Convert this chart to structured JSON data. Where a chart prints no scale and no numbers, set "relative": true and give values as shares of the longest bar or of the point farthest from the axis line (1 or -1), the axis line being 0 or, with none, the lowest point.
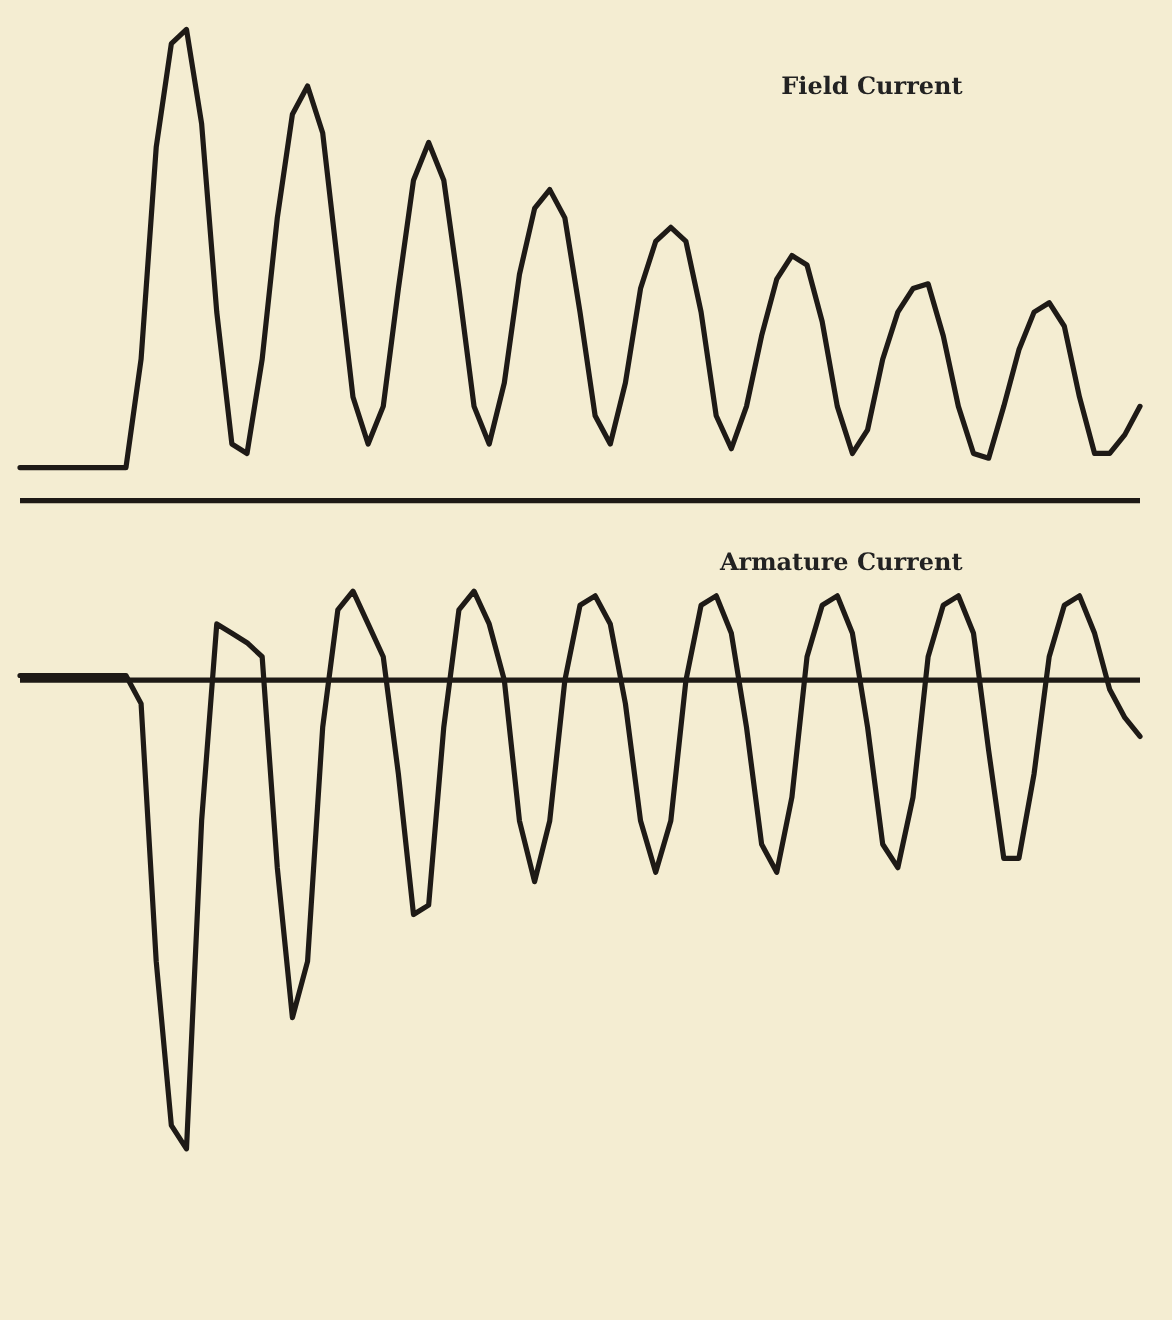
{
  "chart_data": [
    {
      "type": "line",
      "title": "Field Current",
      "relative": true,
      "color": "#1e1a16",
      "categories": [
        null,
        null,
        null,
        null,
        null,
        null,
        null,
        null,
        null,
        null,
        null,
        null,
        null,
        null,
        null,
        null,
        null,
        null,
        null,
        null,
        null,
        null,
        null,
        null,
        null,
        null,
        null,
        null,
        null,
        null,
        null,
        null,
        null,
        null,
        null,
        null,
        null,
        null,
        null,
        null,
        null,
        null,
        null,
        null,
        null,
        null,
        null,
        null,
        null,
        null,
        null,
        null,
        null,
        null,
        null,
        null,
        null,
        null,
        null,
        null,
        null,
        null,
        null,
        null,
        null,
        null,
        null,
        null,
        null,
        null,
        null,
        null,
        null,
        null,
        null
      ],
      "values": [
        0.07,
        0.07,
        0.07,
        0.07,
        0.07,
        0.07,
        0.07,
        0.07,
        0.3,
        0.75,
        0.97,
        1.0,
        0.8,
        0.4,
        0.12,
        0.1,
        0.3,
        0.6,
        0.82,
        0.88,
        0.78,
        0.5,
        0.22,
        0.12,
        0.2,
        0.45,
        0.68,
        0.76,
        0.68,
        0.45,
        0.2,
        0.12,
        0.25,
        0.48,
        0.62,
        0.66,
        0.6,
        0.4,
        0.18,
        0.12,
        0.25,
        0.45,
        0.55,
        0.58,
        0.55,
        0.4,
        0.18,
        0.11,
        0.2,
        0.35,
        0.47,
        0.52,
        0.5,
        0.38,
        0.2,
        0.1,
        0.15,
        0.3,
        0.4,
        0.45,
        0.46,
        0.35,
        0.2,
        0.1,
        0.09,
        0.2,
        0.32,
        0.4,
        0.42,
        0.37,
        0.22,
        0.1,
        0.1,
        0.14,
        0.2
      ]
    },
    {
      "type": "line",
      "title": "Armature Current",
      "relative": true,
      "color": "#1e1a16",
      "categories": [
        null,
        null,
        null,
        null,
        null,
        null,
        null,
        null,
        null,
        null,
        null,
        null,
        null,
        null,
        null,
        null,
        null,
        null,
        null,
        null,
        null,
        null,
        null,
        null,
        null,
        null,
        null,
        null,
        null,
        null,
        null,
        null,
        null,
        null,
        null,
        null,
        null,
        null,
        null,
        null,
        null,
        null,
        null,
        null,
        null,
        null,
        null,
        null,
        null,
        null,
        null,
        null,
        null,
        null,
        null,
        null,
        null,
        null,
        null,
        null,
        null,
        null,
        null,
        null,
        null,
        null,
        null,
        null,
        null,
        null,
        null,
        null,
        null,
        null,
        null
      ],
      "values": [
        0.01,
        0.01,
        0.01,
        0.01,
        0.01,
        0.01,
        0.01,
        0.01,
        -0.05,
        -0.6,
        -0.95,
        -1.0,
        -0.3,
        0.12,
        0.1,
        0.08,
        0.05,
        -0.4,
        -0.72,
        -0.6,
        -0.1,
        0.15,
        0.19,
        0.12,
        0.05,
        -0.2,
        -0.5,
        -0.48,
        -0.1,
        0.15,
        0.19,
        0.12,
        0.0,
        -0.3,
        -0.43,
        -0.3,
        0.0,
        0.16,
        0.18,
        0.12,
        -0.05,
        -0.3,
        -0.41,
        -0.3,
        0.0,
        0.16,
        0.18,
        0.1,
        -0.1,
        -0.35,
        -0.41,
        -0.25,
        0.05,
        0.16,
        0.18,
        0.1,
        -0.1,
        -0.35,
        -0.4,
        -0.25,
        0.05,
        0.16,
        0.18,
        0.1,
        -0.15,
        -0.38,
        -0.38,
        -0.2,
        0.05,
        0.16,
        0.18,
        0.1,
        -0.02,
        -0.08,
        -0.12
      ]
    }
  ]
}
